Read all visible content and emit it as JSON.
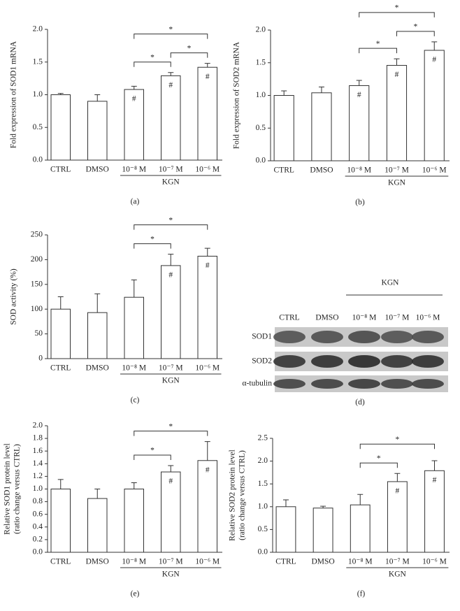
{
  "chart_data": [
    {
      "type": "bar",
      "panel_label": "(a)",
      "y_label": [
        "Fold expression of SOD1 mRNA"
      ],
      "categories": [
        "CTRL",
        "DMSO",
        "10⁻⁸ M",
        "10⁻⁷ M",
        "10⁻⁶ M"
      ],
      "values": [
        1.0,
        0.9,
        1.08,
        1.29,
        1.42
      ],
      "errors": [
        0.02,
        0.1,
        0.05,
        0.05,
        0.06
      ],
      "bar_labels": [
        null,
        null,
        "#",
        "#",
        "#"
      ],
      "group": {
        "label": "KGN",
        "from": 2,
        "to": 4
      },
      "significance": [
        {
          "label": "*",
          "between": [
            2,
            3
          ]
        },
        {
          "label": "*",
          "between": [
            3,
            4
          ]
        },
        {
          "label": "*",
          "between": [
            2,
            4
          ]
        }
      ],
      "ylim": [
        0,
        2
      ],
      "yticks": [
        {
          "value": 0,
          "label": "0.0"
        },
        {
          "value": 0.5,
          "label": "0.5"
        },
        {
          "value": 1,
          "label": "1.0"
        },
        {
          "value": 1.5,
          "label": "1.5"
        },
        {
          "value": 2,
          "label": "2.0"
        }
      ],
      "color": "#ffffff"
    },
    {
      "type": "bar",
      "panel_label": "(b)",
      "y_label": [
        "Fold expression of SOD2 mRNA"
      ],
      "categories": [
        "CTRL",
        "DMSO",
        "10⁻⁸ M",
        "10⁻⁷ M",
        "10⁻⁶ M"
      ],
      "values": [
        1.0,
        1.04,
        1.15,
        1.46,
        1.69
      ],
      "errors": [
        0.07,
        0.09,
        0.08,
        0.1,
        0.13
      ],
      "bar_labels": [
        null,
        null,
        "#",
        "#",
        "#"
      ],
      "group": {
        "label": "KGN",
        "from": 2,
        "to": 4
      },
      "significance": [
        {
          "label": "*",
          "between": [
            2,
            3
          ]
        },
        {
          "label": "*",
          "between": [
            3,
            4
          ]
        },
        {
          "label": "*",
          "between": [
            2,
            4
          ]
        }
      ],
      "ylim": [
        0,
        2
      ],
      "yticks": [
        {
          "value": 0,
          "label": "0.0"
        },
        {
          "value": 0.5,
          "label": "0.5"
        },
        {
          "value": 1,
          "label": "1.0"
        },
        {
          "value": 1.5,
          "label": "1.5"
        },
        {
          "value": 2,
          "label": "2.0"
        }
      ],
      "color": "#ffffff"
    },
    {
      "type": "bar",
      "panel_label": "(c)",
      "y_label": [
        "SOD activity (%)"
      ],
      "categories": [
        "CTRL",
        "DMSO",
        "10⁻⁸ M",
        "10⁻⁷ M",
        "10⁻⁶ M"
      ],
      "values": [
        100,
        93,
        124,
        188,
        207
      ],
      "errors": [
        25,
        38,
        35,
        23,
        16
      ],
      "bar_labels": [
        null,
        null,
        null,
        "#",
        "#"
      ],
      "group": {
        "label": "KGN",
        "from": 2,
        "to": 4
      },
      "significance": [
        {
          "label": "*",
          "between": [
            2,
            3
          ]
        },
        {
          "label": "*",
          "between": [
            2,
            4
          ]
        }
      ],
      "ylim": [
        0,
        250
      ],
      "yticks": [
        0,
        50,
        100,
        150,
        200,
        250
      ],
      "color": "#ffffff"
    },
    {
      "type": "bar",
      "panel_label": "(e)",
      "y_label": [
        "Relative SOD1 protein level",
        "(ratio change versus CTRL)"
      ],
      "categories": [
        "CTRL",
        "DMSO",
        "10⁻⁸ M",
        "10⁻⁷ M",
        "10⁻⁶ M"
      ],
      "values": [
        1.0,
        0.85,
        1.0,
        1.27,
        1.45
      ],
      "errors": [
        0.15,
        0.15,
        0.1,
        0.1,
        0.3
      ],
      "bar_labels": [
        null,
        null,
        null,
        "#",
        "#"
      ],
      "group": {
        "label": "KGN",
        "from": 2,
        "to": 4
      },
      "significance": [
        {
          "label": "*",
          "between": [
            2,
            3
          ]
        },
        {
          "label": "*",
          "between": [
            2,
            4
          ]
        }
      ],
      "ylim": [
        0,
        2
      ],
      "yticks": [
        {
          "value": 0,
          "label": "0.0"
        },
        0.2,
        0.4,
        0.6,
        0.8,
        {
          "value": 1,
          "label": "1.0"
        },
        1.2,
        1.4,
        1.6,
        1.8,
        {
          "value": 2,
          "label": "2.0"
        }
      ],
      "color": "#ffffff"
    },
    {
      "type": "bar",
      "panel_label": "(f)",
      "y_label": [
        "Relative SOD2 protein level",
        "(ratio change versus CTRL)"
      ],
      "categories": [
        "CTRL",
        "DMSO",
        "10⁻⁸ M",
        "10⁻⁷ M",
        "10⁻⁶ M"
      ],
      "values": [
        1.0,
        0.97,
        1.04,
        1.55,
        1.79
      ],
      "errors": [
        0.15,
        0.04,
        0.23,
        0.18,
        0.22
      ],
      "bar_labels": [
        null,
        null,
        null,
        "#",
        "#"
      ],
      "group": {
        "label": "KGN",
        "from": 2,
        "to": 4
      },
      "significance": [
        {
          "label": "*",
          "between": [
            2,
            3
          ]
        },
        {
          "label": "*",
          "between": [
            2,
            4
          ]
        }
      ],
      "ylim": [
        0,
        2.5
      ],
      "yticks": [
        {
          "value": 0,
          "label": "0.0"
        },
        0.5,
        {
          "value": 1,
          "label": "1.0"
        },
        1.5,
        {
          "value": 2,
          "label": "2.0"
        },
        2.5
      ],
      "color": "#ffffff"
    }
  ],
  "blot": {
    "panel_label": "(d)",
    "group_label": "KGN",
    "columns": [
      "CTRL",
      "DMSO",
      "10⁻⁸ M",
      "10⁻⁷ M",
      "10⁻⁶ M"
    ],
    "rows": [
      "SOD1",
      "SOD2",
      "α-tubulin"
    ]
  }
}
